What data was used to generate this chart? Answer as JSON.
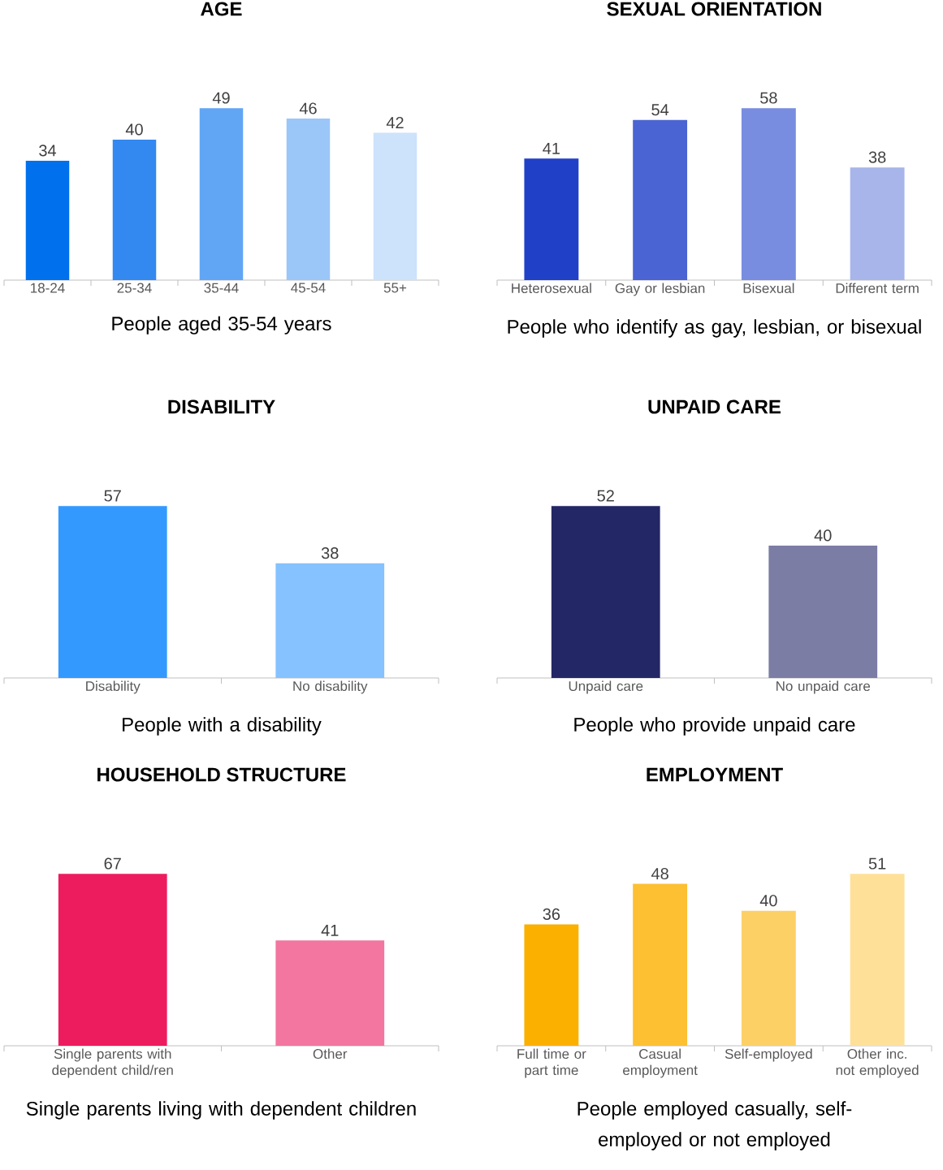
{
  "chart_data": [
    {
      "type": "bar",
      "title": "AGE",
      "categories": [
        "18-24",
        "25-34",
        "35-44",
        "45-54",
        "55+"
      ],
      "values": [
        34,
        40,
        49,
        46,
        42
      ],
      "colors": [
        "#0070ed",
        "#3389f0",
        "#61a6f5",
        "#9bc6f8",
        "#cde2fb"
      ],
      "data_labels": true,
      "annotations": [
        "People aged 35-54 years"
      ]
    },
    {
      "type": "bar",
      "title": "SEXUAL ORIENTATION",
      "categories": [
        "Heterosexual",
        "Gay or lesbian",
        "Bisexual",
        "Different term"
      ],
      "values": [
        41,
        54,
        58,
        38
      ],
      "colors": [
        "#2140c8",
        "#4a64d3",
        "#788ddf",
        "#a8b5ea"
      ],
      "data_labels": true,
      "annotations": [
        "People who identify as gay, lesbian, or bisexual"
      ]
    },
    {
      "type": "bar",
      "title": "DISABILITY",
      "categories": [
        "Disability",
        "No disability"
      ],
      "values": [
        57,
        38
      ],
      "colors": [
        "#3399ff",
        "#85c2ff"
      ],
      "data_labels": true,
      "annotations": [
        "People with a disability"
      ]
    },
    {
      "type": "bar",
      "title": "UNPAID CARE",
      "categories": [
        "Unpaid care",
        "No unpaid care"
      ],
      "values": [
        52,
        40
      ],
      "colors": [
        "#232766",
        "#7b7da5"
      ],
      "data_labels": true,
      "annotations": [
        "People who provide unpaid care"
      ]
    },
    {
      "type": "bar",
      "title": "HOUSEHOLD STRUCTURE",
      "categories": [
        "Single parents with dependent child/ren",
        "Other"
      ],
      "values": [
        67,
        41
      ],
      "colors": [
        "#ed1c5f",
        "#f2769f"
      ],
      "data_labels": true,
      "annotations": [
        "Single parents living with dependent children"
      ]
    },
    {
      "type": "bar",
      "title": "EMPLOYMENT",
      "categories": [
        "Full time or part time",
        "Casual employment",
        "Self-employed",
        "Other inc. not employed"
      ],
      "values": [
        36,
        48,
        40,
        51
      ],
      "colors": [
        "#fbb000",
        "#fdc032",
        "#fdd066",
        "#fee099"
      ],
      "data_labels": true,
      "annotations": [
        "People employed casually, self-employed or not employed"
      ]
    }
  ]
}
